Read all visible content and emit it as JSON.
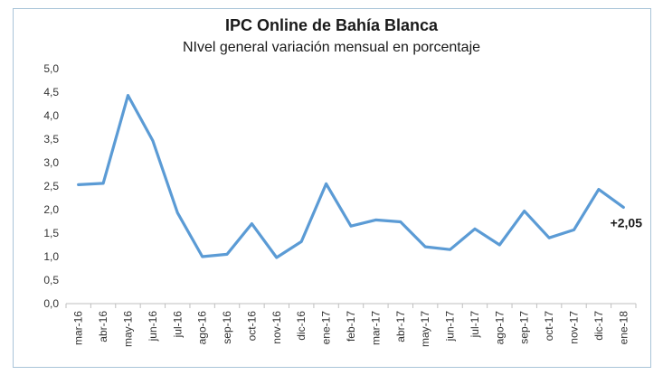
{
  "chart_data": {
    "type": "line",
    "title": "IPC Online de Bahía Blanca",
    "subtitle": "NIvel general variación mensual en porcentaje",
    "xlabel": "",
    "ylabel": "",
    "categories": [
      "mar-16",
      "abr-16",
      "may-16",
      "jun-16",
      "jul-16",
      "ago-16",
      "sep-16",
      "oct-16",
      "nov-16",
      "dic-16",
      "ene-17",
      "feb-17",
      "mar-17",
      "abr-17",
      "may-17",
      "jun-17",
      "jul-17",
      "ago-17",
      "sep-17",
      "oct-17",
      "nov-17",
      "dic-17",
      "ene-18"
    ],
    "series": [
      {
        "values": [
          2.53,
          2.56,
          4.43,
          3.47,
          1.93,
          1.0,
          1.05,
          1.7,
          0.98,
          1.32,
          2.55,
          1.65,
          1.78,
          1.74,
          1.21,
          1.15,
          1.59,
          1.25,
          1.97,
          1.4,
          1.57,
          2.43,
          2.05
        ],
        "color": "#5b9bd5"
      }
    ],
    "ylim": [
      0,
      5
    ],
    "yticks": [
      "0,0",
      "0,5",
      "1,0",
      "1,5",
      "2,0",
      "2,5",
      "3,0",
      "3,5",
      "4,0",
      "4,5",
      "5,0"
    ],
    "grid": false,
    "legend": "none",
    "annotation": "+2,05"
  }
}
